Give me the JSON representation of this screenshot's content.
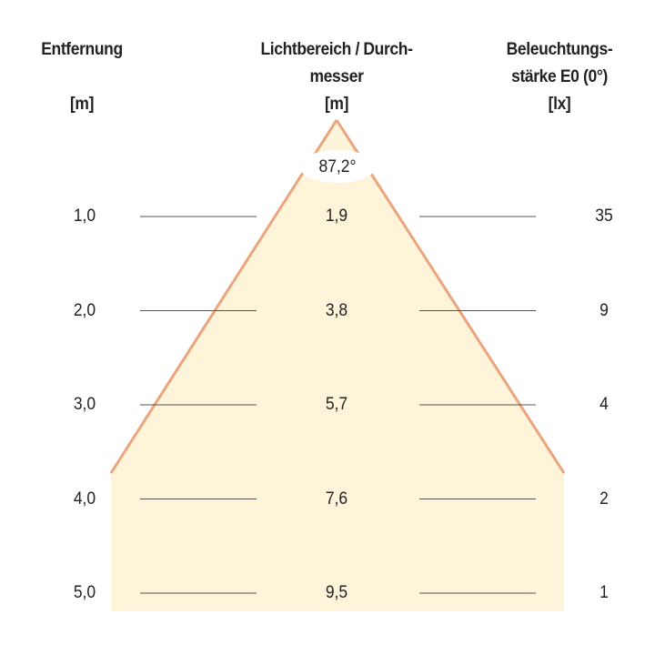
{
  "headers": {
    "distance": {
      "title": "Entfernung",
      "unit": "[m]"
    },
    "diameter": {
      "title_line1": "Lichtbereich / Durch-",
      "title_line2": "messer",
      "unit": "[m]"
    },
    "illuminance": {
      "title_line1": "Beleuchtungs-",
      "title_line2": "stärke E0 (0°)",
      "unit": "[lx]"
    }
  },
  "beam_angle": "87,2°",
  "rows": [
    {
      "distance": "1,0",
      "diameter": "1,9",
      "illuminance": "35"
    },
    {
      "distance": "2,0",
      "diameter": "3,8",
      "illuminance": "9"
    },
    {
      "distance": "3,0",
      "diameter": "5,7",
      "illuminance": "4"
    },
    {
      "distance": "4,0",
      "diameter": "7,6",
      "illuminance": "2"
    },
    {
      "distance": "5,0",
      "diameter": "9,5",
      "illuminance": "1"
    }
  ],
  "colors": {
    "cone_fill": "#fdf4da",
    "cone_edge": "#eba47c",
    "rule": "#555555"
  }
}
